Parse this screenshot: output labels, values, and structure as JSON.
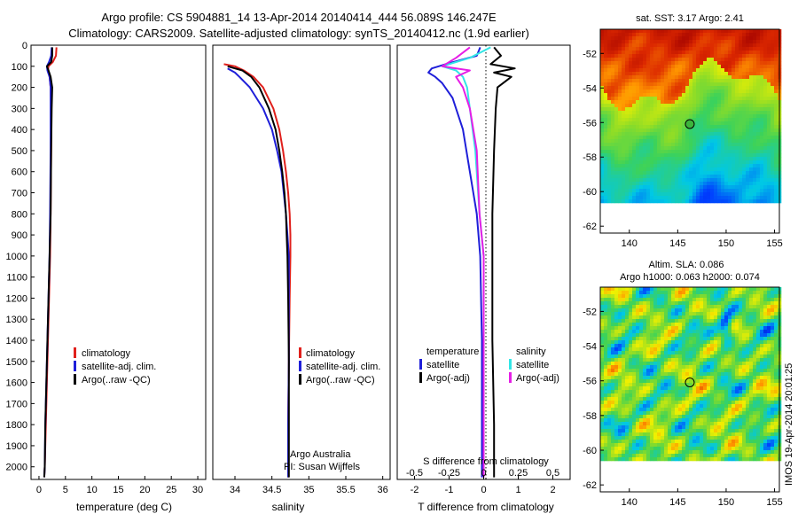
{
  "title": {
    "line1": "Argo profile: CS 5904881_14 13-Apr-2014 20140414_444 56.089S 146.247E",
    "line2": "Climatology: CARS2009. Satellite-adjusted climatology: synTS_20140412.nc (1.9d earlier)"
  },
  "colors": {
    "climatology": "#e0201c",
    "satellite_adj": "#1f1fd9",
    "argo": "#000000",
    "sat_diff": "#33e6e6",
    "argo_diff": "#e61ee6"
  },
  "depth_ticks": [
    "0",
    "100",
    "200",
    "300",
    "400",
    "500",
    "600",
    "700",
    "800",
    "900",
    "1000",
    "1100",
    "1200",
    "1300",
    "1400",
    "1500",
    "1600",
    "1700",
    "1800",
    "1900",
    "2000"
  ],
  "chart_data": [
    {
      "type": "line",
      "xlabel": "temperature (deg C)",
      "xlim": [
        -1.5,
        31.5
      ],
      "ylim": [
        2060,
        0
      ],
      "xticks": [
        "0",
        "5",
        "10",
        "15",
        "20",
        "25",
        "30"
      ],
      "legend": [
        "climatology",
        "satellite-adj. clim.",
        "Argo(..raw -QC)"
      ],
      "series": [
        {
          "name": "climatology",
          "depth": [
            10,
            50,
            80,
            100,
            120,
            150,
            200,
            300,
            500,
            800,
            1000,
            1200,
            1400,
            1600,
            1800,
            2000,
            2050
          ],
          "values": [
            3.3,
            3.2,
            2.6,
            1.8,
            1.7,
            2.0,
            2.2,
            2.3,
            2.3,
            2.2,
            2.1,
            1.9,
            1.7,
            1.5,
            1.3,
            1.1,
            1.0
          ]
        },
        {
          "name": "satellite-adj. clim.",
          "depth": [
            10,
            50,
            80,
            100,
            120,
            150,
            200,
            300,
            500,
            800,
            1000,
            1200,
            1400,
            1600,
            1800,
            2000,
            2050
          ],
          "values": [
            2.4,
            2.3,
            1.9,
            1.5,
            1.6,
            2.0,
            2.2,
            2.2,
            2.2,
            2.1,
            2.0,
            1.8,
            1.6,
            1.4,
            1.2,
            1.1,
            1.0
          ]
        },
        {
          "name": "Argo(..raw -QC)",
          "depth": [
            10,
            50,
            80,
            100,
            120,
            150,
            200,
            300,
            500,
            800,
            1000,
            1200,
            1400,
            1600,
            1800,
            2000,
            2050
          ],
          "values": [
            2.5,
            2.5,
            2.3,
            1.5,
            1.8,
            2.2,
            2.5,
            2.4,
            2.3,
            2.2,
            2.0,
            1.8,
            1.6,
            1.4,
            1.2,
            1.1,
            1.0
          ]
        }
      ]
    },
    {
      "type": "line",
      "xlabel": "salinity",
      "xlim": [
        33.7,
        36.1
      ],
      "ylim": [
        2060,
        0
      ],
      "xticks": [
        "34",
        "34.5",
        "35",
        "35.5",
        "36"
      ],
      "legend": [
        "climatology",
        "satellite-adj. clim.",
        "Argo(..raw -QC)"
      ],
      "annotation": [
        "Argo Australia",
        "PI: Susan Wijffels"
      ],
      "series": [
        {
          "name": "climatology",
          "depth": [
            90,
            100,
            120,
            150,
            200,
            300,
            400,
            500,
            600,
            700,
            800,
            900,
            1000,
            1200,
            1500,
            1800,
            2050
          ],
          "values": [
            33.85,
            34.0,
            34.12,
            34.25,
            34.38,
            34.52,
            34.6,
            34.65,
            34.69,
            34.72,
            34.74,
            34.75,
            34.75,
            34.74,
            34.73,
            34.72,
            34.72
          ]
        },
        {
          "name": "satellite-adj. clim.",
          "depth": [
            110,
            130,
            150,
            200,
            300,
            400,
            500,
            600,
            700,
            800,
            900,
            1000,
            1200,
            1500,
            1800,
            2050
          ],
          "values": [
            33.9,
            34.0,
            34.06,
            34.2,
            34.38,
            34.5,
            34.57,
            34.63,
            34.66,
            34.69,
            34.71,
            34.73,
            34.73,
            34.73,
            34.72,
            34.72
          ]
        },
        {
          "name": "Argo(..raw -QC)",
          "depth": [
            100,
            120,
            150,
            200,
            300,
            400,
            500,
            600,
            700,
            800,
            900,
            1000,
            1200,
            1500,
            1800,
            2050
          ],
          "values": [
            33.9,
            34.1,
            34.22,
            34.33,
            34.46,
            34.55,
            34.6,
            34.64,
            34.67,
            34.69,
            34.7,
            34.71,
            34.72,
            34.73,
            34.73,
            34.73
          ]
        }
      ]
    },
    {
      "type": "line",
      "xlabel": "T difference from climatology",
      "xlabel_top": "S difference from climatology",
      "xlim": [
        -2.5,
        2.5
      ],
      "ylim": [
        2060,
        0
      ],
      "xticks": [
        "-2",
        "-1",
        "0",
        "1",
        "2"
      ],
      "xticks_top": [
        "-0.5",
        "-0.25",
        "0",
        "0.25",
        "0.5"
      ],
      "legend_left_title": "temperature",
      "legend_right_title": "salinity",
      "legend": [
        "satellite",
        "Argo(-adj)",
        "satellite",
        "Argo(-adj)"
      ],
      "series": [
        {
          "name": "satellite",
          "depth": [
            10,
            50,
            90,
            110,
            130,
            150,
            180,
            250,
            400,
            600,
            800,
            1000,
            1400,
            1800,
            2050
          ],
          "values": [
            -0.1,
            -0.2,
            -1.1,
            -1.5,
            -1.6,
            -1.4,
            -1.2,
            -0.9,
            -0.6,
            -0.4,
            -0.2,
            -0.1,
            -0.05,
            -0.05,
            -0.05
          ]
        },
        {
          "name": "Argo(-adj)",
          "depth": [
            10,
            50,
            90,
            110,
            130,
            150,
            200,
            300,
            500,
            800,
            1000,
            1400,
            1800,
            2050
          ],
          "values": [
            0.3,
            0.5,
            0.2,
            0.9,
            0.3,
            0.8,
            0.4,
            0.35,
            0.3,
            0.25,
            0.25,
            0.25,
            0.3,
            0.3
          ]
        },
        {
          "name": "satellite",
          "depth": [
            10,
            60,
            100,
            120,
            150,
            200,
            300,
            500,
            800,
            1000,
            1400,
            1800,
            2050
          ],
          "values": [
            0.05,
            -0.1,
            -0.3,
            -0.2,
            -0.15,
            -0.12,
            -0.1,
            -0.06,
            -0.03,
            0.0,
            0.0,
            0.0,
            0.0
          ]
        },
        {
          "name": "Argo(-adj)",
          "depth": [
            10,
            60,
            100,
            120,
            150,
            200,
            300,
            500,
            800,
            1000,
            1400,
            1800,
            2050
          ],
          "values": [
            -0.1,
            -0.2,
            -0.3,
            -0.1,
            -0.2,
            -0.15,
            -0.1,
            -0.05,
            -0.03,
            0.0,
            0.0,
            0.0,
            0.0
          ]
        }
      ]
    },
    {
      "type": "heatmap",
      "title": "sat. SST: 3.17 Argo: 2.41",
      "xticks": [
        "140",
        "145",
        "150",
        "155"
      ],
      "yticks": [
        "-52",
        "-54",
        "-56",
        "-58",
        "-60",
        "-62"
      ],
      "xlim": [
        137,
        155.5
      ],
      "ylim": [
        -62.4,
        -50.6
      ],
      "marker": {
        "lon": 146.247,
        "lat": -56.089
      }
    },
    {
      "type": "heatmap",
      "title": "Altim. SLA: 0.086",
      "subtitle": "Argo h1000: 0.063 h2000: 0.074",
      "xticks": [
        "140",
        "145",
        "150",
        "155"
      ],
      "yticks": [
        "-52",
        "-54",
        "-56",
        "-58",
        "-60",
        "-62"
      ],
      "xlim": [
        137,
        155.5
      ],
      "ylim": [
        -62.4,
        -50.6
      ],
      "marker": {
        "lon": 146.247,
        "lat": -56.089
      }
    }
  ],
  "footer": "IMOS 19-Apr-2014 20:01:25"
}
